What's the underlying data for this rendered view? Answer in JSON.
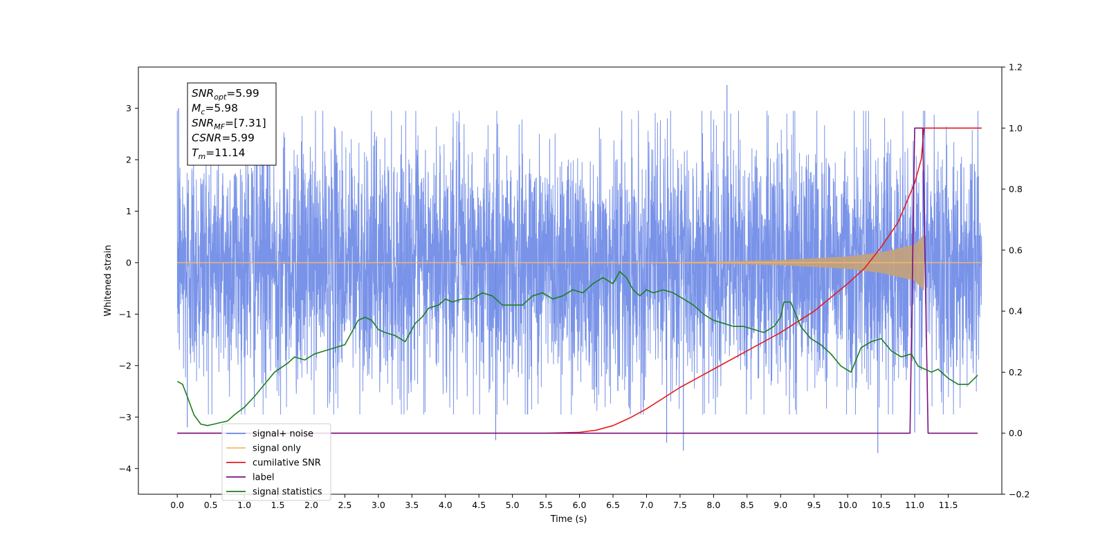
{
  "chart_data": {
    "type": "line",
    "xlabel": "Time (s)",
    "ylabel": "Whitened strain",
    "xlim": [
      -0.58,
      12.3
    ],
    "ylim": [
      -4.5,
      3.8
    ],
    "y2lim": [
      -0.2,
      1.2
    ],
    "x_ticks": [
      0.0,
      0.5,
      1.0,
      1.5,
      2.0,
      2.5,
      3.0,
      3.5,
      4.0,
      4.5,
      5.0,
      5.5,
      6.0,
      6.5,
      7.0,
      7.5,
      8.0,
      8.5,
      9.0,
      9.5,
      10.0,
      10.5,
      11.0,
      11.5
    ],
    "x_tick_labels": [
      "0.0",
      "0.5",
      "1.0",
      "1.5",
      "2.0",
      "2.5",
      "3.0",
      "3.5",
      "4.0",
      "4.5",
      "5.0",
      "5.5",
      "6.0",
      "6.5",
      "7.0",
      "7.5",
      "8.0",
      "8.5",
      "9.0",
      "9.5",
      "10.0",
      "10.5",
      "11.0",
      "11.5"
    ],
    "y_ticks": [
      -4,
      -3,
      -2,
      -1,
      0,
      1,
      2,
      3
    ],
    "y_tick_labels": [
      "−4",
      "−3",
      "−2",
      "−1",
      "0",
      "1",
      "2",
      "3"
    ],
    "y2_ticks": [
      -0.2,
      0.0,
      0.2,
      0.4,
      0.6,
      0.8,
      1.0,
      1.2
    ],
    "y2_tick_labels": [
      "−0.2",
      "0.0",
      "0.2",
      "0.4",
      "0.6",
      "0.8",
      "1.0",
      "1.2"
    ],
    "legend_placement": "lower-left",
    "annotation": {
      "lines": [
        {
          "var": "SNR",
          "sub": "opt",
          "value": "=5.99"
        },
        {
          "var": "M",
          "sub": "c",
          "value": "=5.98"
        },
        {
          "var": "SNR",
          "sub": "MF",
          "value": "=[7.31]"
        },
        {
          "var": "CSNR",
          "sub": "",
          "value": "=5.99"
        },
        {
          "var": "T",
          "sub": "m",
          "value": "=11.14"
        }
      ]
    },
    "series": [
      {
        "name": "signal+ noise",
        "axis": "left",
        "color": "#6a87e6",
        "style": "noise",
        "x_range": [
          0.0,
          12.0
        ],
        "amplitude_band": [
          -2.2,
          2.2
        ],
        "notable_peaks": [
          {
            "x": 0.02,
            "y": 3.0
          },
          {
            "x": 0.15,
            "y": -3.2
          },
          {
            "x": 4.75,
            "y": -3.45
          },
          {
            "x": 7.3,
            "y": -3.5
          },
          {
            "x": 7.55,
            "y": -3.65
          },
          {
            "x": 8.2,
            "y": 3.45
          },
          {
            "x": 10.45,
            "y": -3.7
          },
          {
            "x": 11.0,
            "y": -3.3
          },
          {
            "x": 11.15,
            "y": 2.95
          }
        ]
      },
      {
        "name": "signal only",
        "axis": "left",
        "color": "#f5b96a",
        "style": "chirp",
        "x_range": [
          0.0,
          12.0
        ],
        "envelope": {
          "x": [
            0.0,
            6.5,
            8.0,
            9.0,
            10.0,
            10.5,
            11.0,
            11.14
          ],
          "y": [
            0.0,
            0.0,
            0.02,
            0.05,
            0.12,
            0.2,
            0.35,
            0.55
          ]
        }
      },
      {
        "name": "cumilative SNR",
        "axis": "right",
        "color": "#e41a1c",
        "x": [
          0.0,
          5.5,
          6.0,
          6.25,
          6.5,
          6.75,
          7.0,
          7.5,
          8.0,
          8.5,
          9.0,
          9.5,
          10.0,
          10.25,
          10.5,
          10.75,
          11.0,
          11.1,
          11.14,
          12.0
        ],
        "y": [
          0.0,
          0.0,
          0.003,
          0.01,
          0.025,
          0.05,
          0.08,
          0.15,
          0.21,
          0.27,
          0.33,
          0.4,
          0.49,
          0.54,
          0.61,
          0.69,
          0.82,
          0.9,
          1.0,
          1.0
        ]
      },
      {
        "name": "label",
        "axis": "right",
        "color": "#7b0f82",
        "x": [
          0.0,
          10.93,
          11.0,
          11.12,
          11.2,
          11.94
        ],
        "y": [
          0.0,
          0.0,
          1.0,
          1.0,
          0.0,
          0.0
        ]
      },
      {
        "name": "signal statistics",
        "axis": "right",
        "color": "#1a7f1a",
        "x": [
          0.0,
          0.08,
          0.15,
          0.25,
          0.35,
          0.45,
          0.55,
          0.65,
          0.75,
          0.85,
          1.0,
          1.15,
          1.3,
          1.45,
          1.55,
          1.65,
          1.75,
          1.9,
          2.05,
          2.2,
          2.35,
          2.5,
          2.6,
          2.7,
          2.8,
          2.9,
          3.0,
          3.1,
          3.25,
          3.4,
          3.55,
          3.65,
          3.75,
          3.9,
          4.0,
          4.1,
          4.25,
          4.4,
          4.55,
          4.7,
          4.85,
          5.0,
          5.15,
          5.3,
          5.45,
          5.6,
          5.75,
          5.9,
          6.05,
          6.2,
          6.35,
          6.5,
          6.6,
          6.7,
          6.8,
          6.9,
          7.0,
          7.1,
          7.25,
          7.4,
          7.55,
          7.7,
          7.85,
          8.0,
          8.15,
          8.3,
          8.45,
          8.6,
          8.75,
          8.9,
          9.0,
          9.05,
          9.15,
          9.3,
          9.45,
          9.6,
          9.75,
          9.9,
          10.05,
          10.2,
          10.35,
          10.5,
          10.65,
          10.8,
          10.95,
          11.05,
          11.15,
          11.25,
          11.35,
          11.5,
          11.65,
          11.8,
          11.94
        ],
        "y": [
          0.17,
          0.16,
          0.12,
          0.06,
          0.03,
          0.025,
          0.03,
          0.035,
          0.04,
          0.06,
          0.085,
          0.12,
          0.16,
          0.2,
          0.215,
          0.23,
          0.25,
          0.24,
          0.26,
          0.27,
          0.28,
          0.29,
          0.33,
          0.37,
          0.38,
          0.37,
          0.34,
          0.33,
          0.32,
          0.3,
          0.36,
          0.38,
          0.41,
          0.42,
          0.44,
          0.43,
          0.44,
          0.44,
          0.46,
          0.45,
          0.42,
          0.42,
          0.42,
          0.45,
          0.46,
          0.44,
          0.45,
          0.47,
          0.46,
          0.49,
          0.51,
          0.49,
          0.53,
          0.51,
          0.47,
          0.45,
          0.47,
          0.46,
          0.47,
          0.46,
          0.44,
          0.42,
          0.39,
          0.37,
          0.36,
          0.35,
          0.35,
          0.34,
          0.33,
          0.35,
          0.38,
          0.43,
          0.43,
          0.35,
          0.31,
          0.29,
          0.26,
          0.22,
          0.2,
          0.28,
          0.3,
          0.31,
          0.27,
          0.25,
          0.26,
          0.22,
          0.21,
          0.2,
          0.21,
          0.18,
          0.16,
          0.16,
          0.19
        ]
      }
    ]
  }
}
